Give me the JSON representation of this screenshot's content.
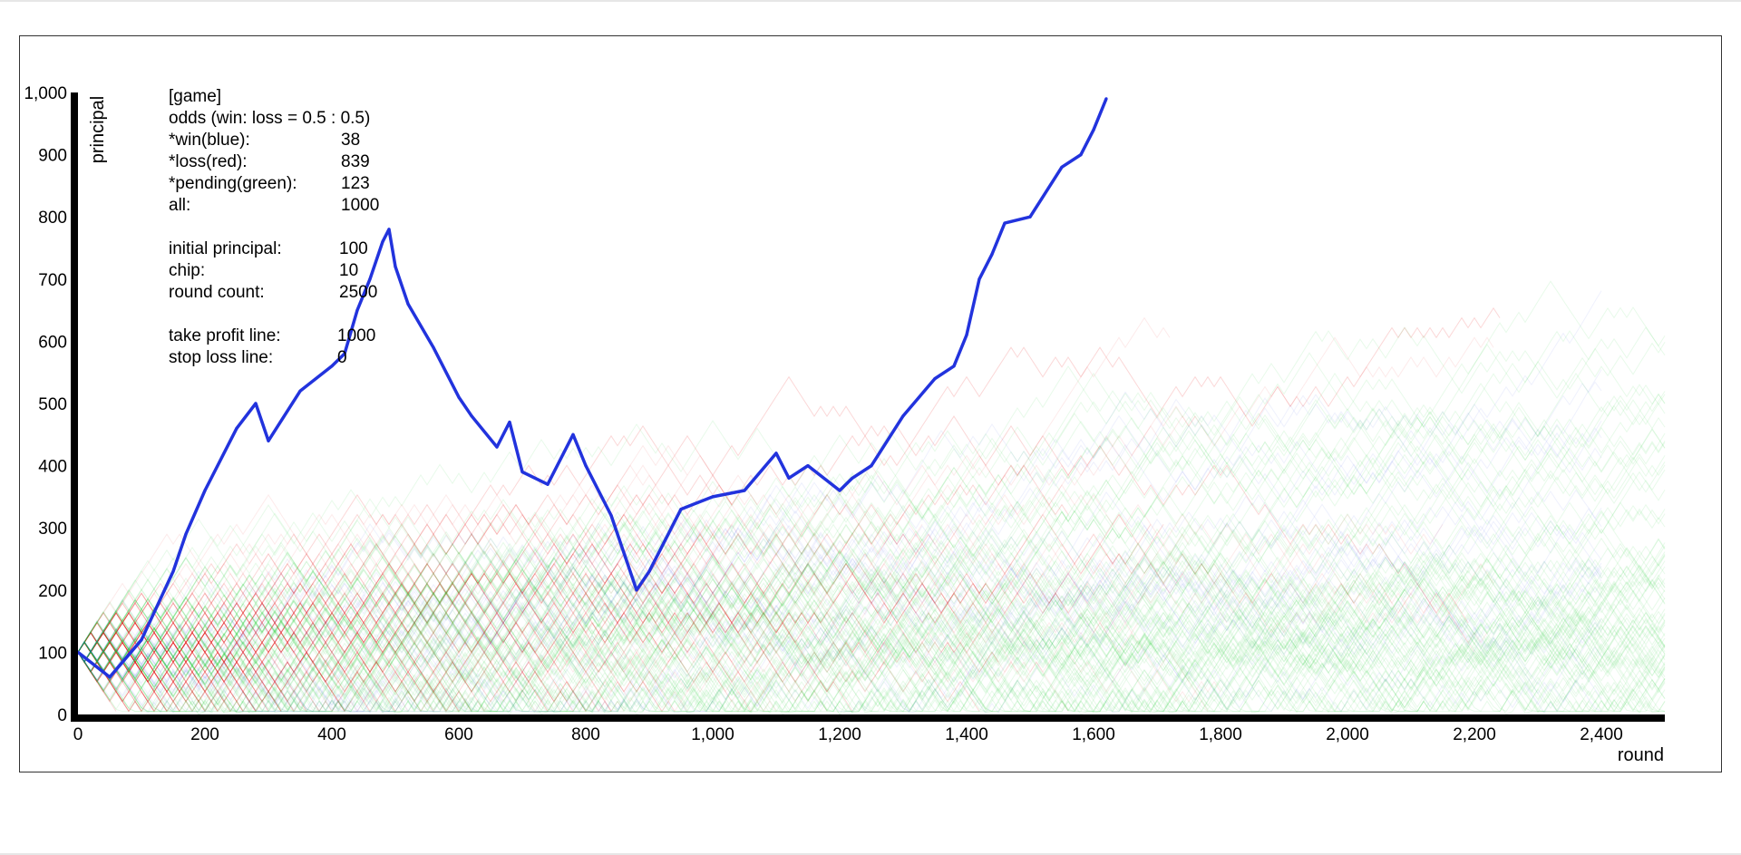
{
  "chart_data": {
    "type": "line",
    "xlabel": "round",
    "ylabel": "principal",
    "xlim": [
      0,
      2500
    ],
    "ylim": [
      0,
      1000
    ],
    "x_ticks": [
      "0",
      "200",
      "400",
      "600",
      "800",
      "1,000",
      "1,200",
      "1,400",
      "1,600",
      "1,800",
      "2,000",
      "2,200",
      "2,400"
    ],
    "y_ticks": [
      "0",
      "100",
      "200",
      "300",
      "400",
      "500",
      "600",
      "700",
      "800",
      "900",
      "1,000"
    ],
    "grid": false,
    "colors": {
      "win": "#2233dd",
      "loss": "#ee2222",
      "pending": "#22cc33"
    },
    "series": [
      {
        "name": "win(blue)",
        "x": [
          0,
          50,
          100,
          150,
          170,
          200,
          250,
          280,
          300,
          350,
          400,
          420,
          440,
          460,
          480,
          490,
          500,
          520,
          560,
          600,
          620,
          660,
          680,
          700,
          740,
          780,
          800,
          840,
          880,
          900,
          950,
          1000,
          1050,
          1100,
          1120,
          1150,
          1200,
          1220,
          1250,
          1300,
          1350,
          1380,
          1400,
          1420,
          1440,
          1460,
          1500,
          1550,
          1580,
          1600,
          1620
        ],
        "y": [
          100,
          60,
          120,
          230,
          290,
          360,
          460,
          500,
          440,
          520,
          560,
          580,
          650,
          700,
          760,
          780,
          720,
          660,
          590,
          510,
          480,
          430,
          470,
          390,
          370,
          450,
          400,
          320,
          200,
          230,
          330,
          350,
          360,
          420,
          380,
          400,
          360,
          380,
          400,
          480,
          540,
          560,
          610,
          700,
          740,
          790,
          800,
          880,
          900,
          940,
          990
        ]
      }
    ]
  },
  "info": {
    "header": "[game]",
    "odds": "odds  (win: loss = 0.5 : 0.5)",
    "rows1": [
      {
        "key": "*win(blue):",
        "value": "38"
      },
      {
        "key": "*loss(red):",
        "value": "839"
      },
      {
        "key": "*pending(green):",
        "value": "123"
      },
      {
        "key": "all:",
        "value": "1000"
      }
    ],
    "rows2": [
      {
        "key": "initial principal:",
        "value": "100"
      },
      {
        "key": "chip:",
        "value": "10"
      },
      {
        "key": "round count:",
        "value": "2500"
      }
    ],
    "rows3": [
      {
        "key": "take profit line:",
        "value": "1000"
      },
      {
        "key": "stop loss line:",
        "value": "0"
      }
    ]
  }
}
